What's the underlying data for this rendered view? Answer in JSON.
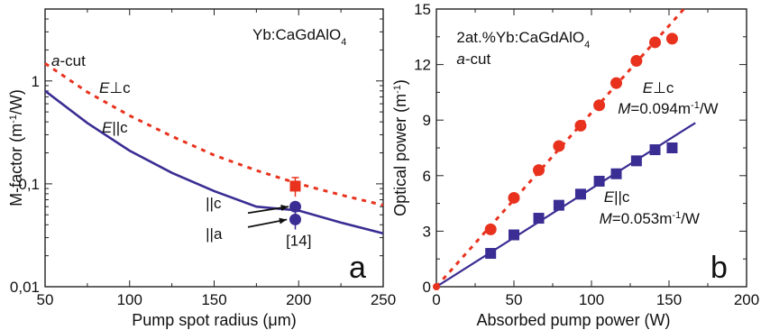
{
  "chart_data": [
    {
      "panel": "a",
      "type": "line",
      "xlabel": "Pump spot radius (μm)",
      "ylabel": "M-factor (m⁻¹/W)",
      "xlim": [
        50,
        250
      ],
      "ylim": [
        0.01,
        5
      ],
      "yscale": "log",
      "x_ticks": [
        "50",
        "100",
        "150",
        "200",
        "250"
      ],
      "y_ticks": [
        "0,01",
        "0,1",
        "1"
      ],
      "material_label": "Yb:CaGdAlO",
      "material_sub": "4",
      "cut_label_italic": "a",
      "cut_label_rest": "-cut",
      "perp_label_E": "E",
      "perp_label_rest": "⊥c",
      "par_label_E": "E",
      "par_label_rest": "||c",
      "point_label_c": "||c",
      "point_label_a": "||a",
      "ref_label": "[14]",
      "series": [
        {
          "name": "E⊥c",
          "style": "dashed",
          "color": "#e8321e",
          "x": [
            50,
            75,
            100,
            125,
            150,
            175,
            200,
            225,
            250
          ],
          "y": [
            1.48,
            0.78,
            0.46,
            0.29,
            0.19,
            0.135,
            0.1,
            0.078,
            0.062
          ]
        },
        {
          "name": "E||c",
          "style": "solid",
          "color": "#3a2d93",
          "x": [
            50,
            75,
            100,
            125,
            150,
            175,
            200,
            225,
            250
          ],
          "y": [
            0.8,
            0.39,
            0.21,
            0.128,
            0.085,
            0.06,
            0.055,
            0.042,
            0.033
          ]
        }
      ],
      "points": [
        {
          "name": "E⊥c",
          "marker": "square",
          "color": "#e8321e",
          "x": 198,
          "y": 0.095,
          "err": 0.02
        },
        {
          "name": "||c",
          "marker": "circle",
          "color": "#3a2d93",
          "x": 198,
          "y": 0.06
        },
        {
          "name": "||a",
          "marker": "circle",
          "color": "#3a2d93",
          "x": 198,
          "y": 0.045,
          "err": 0.009
        }
      ],
      "panel_label": "a"
    },
    {
      "panel": "b",
      "type": "scatter",
      "xlabel": "Absorbed pump power (W)",
      "ylabel": "Optical power (m⁻¹)",
      "xlim": [
        0,
        200
      ],
      "ylim": [
        0,
        15
      ],
      "x_ticks": [
        "0",
        "50",
        "100",
        "150",
        "200"
      ],
      "y_ticks": [
        "0",
        "3",
        "6",
        "9",
        "12",
        "15"
      ],
      "material_label": "2at.%Yb:CaGdAlO",
      "material_sub": "4",
      "cut_label_italic": "a",
      "cut_label_rest": "-cut",
      "series": [
        {
          "name": "E⊥c",
          "marker": "circle",
          "color": "#e8321e",
          "x": [
            35,
            50,
            66,
            79,
            93,
            105,
            116,
            129,
            141,
            152
          ],
          "y": [
            3.1,
            4.8,
            6.3,
            7.6,
            8.7,
            9.8,
            11.0,
            12.2,
            13.2,
            13.4
          ],
          "fit": {
            "style": "dashed",
            "slope": 0.094,
            "x_end": 168
          },
          "label_E": "E",
          "label_rest": "⊥c",
          "fit_label_M": "M",
          "fit_label_value": "=0.094m",
          "fit_label_unit": "/W"
        },
        {
          "name": "E||c",
          "marker": "square",
          "color": "#3a2d93",
          "x": [
            35,
            50,
            66,
            79,
            93,
            105,
            116,
            129,
            141,
            152
          ],
          "y": [
            1.8,
            2.8,
            3.7,
            4.4,
            5.0,
            5.7,
            6.1,
            6.8,
            7.4,
            7.5
          ],
          "fit": {
            "style": "solid",
            "slope": 0.053,
            "x_end": 167
          },
          "label_E": "E",
          "label_rest": "||c",
          "fit_label_M": "M",
          "fit_label_value": "=0.053m",
          "fit_label_unit": "/W"
        }
      ],
      "panel_label": "b"
    }
  ]
}
